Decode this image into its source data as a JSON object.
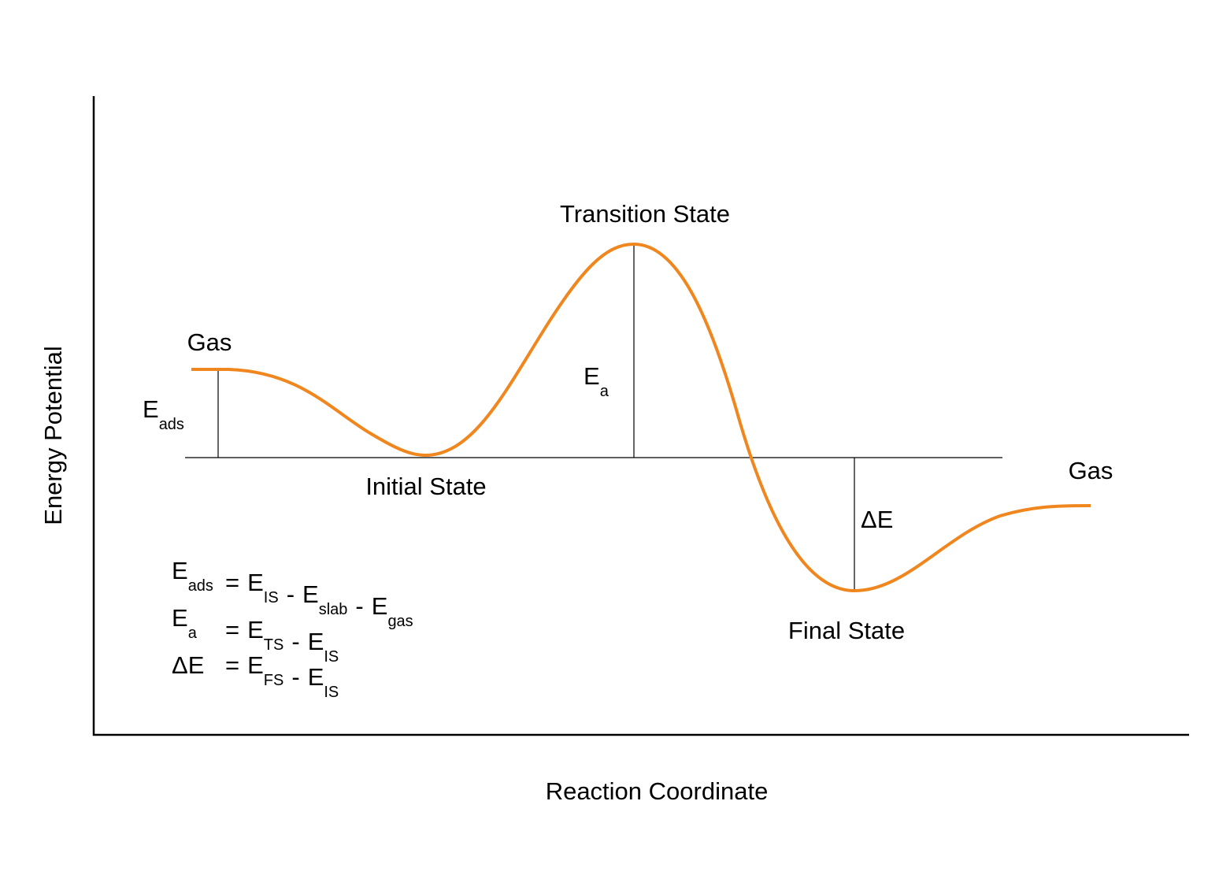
{
  "axes": {
    "x_label": "Reaction Coordinate",
    "y_label": "Energy Potential"
  },
  "states": {
    "gas_left": "Gas",
    "transition": "Transition State",
    "initial": "Initial State",
    "final": "Final State",
    "gas_right": "Gas"
  },
  "energies": {
    "e_ads": {
      "t": "E",
      "sub": "ads"
    },
    "e_a": {
      "t": "E",
      "sub": "a"
    },
    "delta_e": {
      "t": "ΔE"
    }
  },
  "equations": [
    [
      {
        "t": "E",
        "sub": "ads"
      },
      {
        "t": "="
      },
      {
        "t": "E",
        "sub": "IS"
      },
      {
        "t": "-"
      },
      {
        "t": "E",
        "sub": "slab"
      },
      {
        "t": "-"
      },
      {
        "t": "E",
        "sub": "gas"
      }
    ],
    [
      {
        "t": "E",
        "sub": "a"
      },
      {
        "t": "="
      },
      {
        "t": "E",
        "sub": "TS"
      },
      {
        "t": "-"
      },
      {
        "t": "E",
        "sub": "IS"
      }
    ],
    [
      {
        "t": "ΔE"
      },
      {
        "t": "="
      },
      {
        "t": "E",
        "sub": "FS"
      },
      {
        "t": "-"
      },
      {
        "t": "E",
        "sub": "IS"
      }
    ]
  ]
}
